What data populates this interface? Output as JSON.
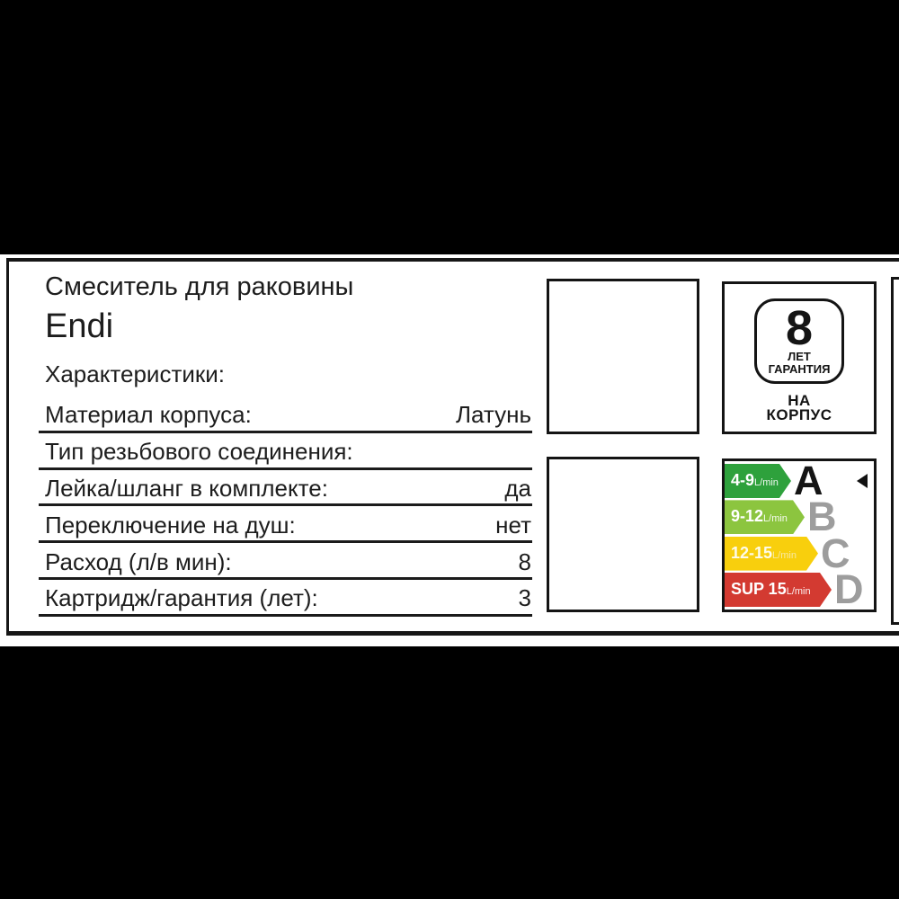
{
  "product": {
    "category": "Смеситель для раковины",
    "model": "Endi",
    "section_title": "Характеристики:"
  },
  "specs": [
    {
      "label": "Материал корпуса:",
      "value": "Латунь"
    },
    {
      "label": "Тип резьбового соединения:",
      "value": ""
    },
    {
      "label": "Лейка/шланг в комплекте:",
      "value": "да"
    },
    {
      "label": "Переключение на душ:",
      "value": "нет"
    },
    {
      "label": "Расход (л/в мин):",
      "value": "8"
    },
    {
      "label": "Картридж/гарантия (лет):",
      "value": "3"
    }
  ],
  "warranty_badge": {
    "years": "8",
    "unit_line": "ЛЕТ",
    "word_line": "ГАРАНТИЯ",
    "scope_line1": "НА",
    "scope_line2": "КОРПУС"
  },
  "flow_label": {
    "selected_grade": "A",
    "rows": [
      {
        "range": "4-9",
        "unit": "L/min",
        "grade": "A",
        "color": "#2EA13C",
        "letter_color": "#141414"
      },
      {
        "range": "9-12",
        "unit": "L/min",
        "grade": "B",
        "color": "#8CC53F",
        "letter_color": "#9D9D9D"
      },
      {
        "range": "12-15",
        "unit": "L/min",
        "grade": "C",
        "color": "#F8CF0D",
        "letter_color": "#9D9D9D"
      },
      {
        "range": "SUP 15",
        "unit": "L/min",
        "grade": "D",
        "color": "#D33A31",
        "letter_color": "#9D9D9D"
      }
    ]
  }
}
